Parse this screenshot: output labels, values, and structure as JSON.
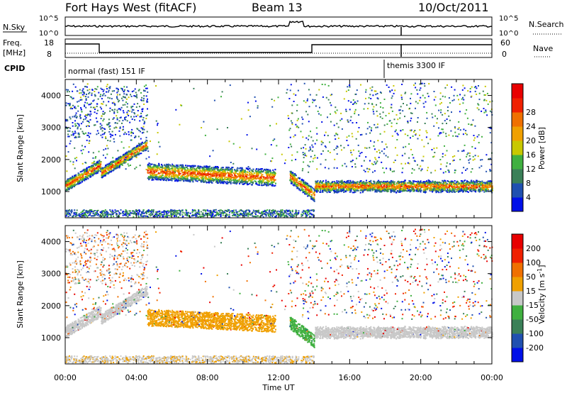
{
  "header": {
    "station": "Fort Hays West (fitACF)",
    "beam": "Beam 13",
    "date": "10/Oct/2011"
  },
  "noise_panel": {
    "left_label": "N.Sky",
    "right_label": "N.Search",
    "left_ticks": [
      "10^5",
      "10^0"
    ],
    "right_ticks": [
      "10^5",
      "10^0"
    ]
  },
  "freq_panel": {
    "left_label_1": "Freq.",
    "left_label_2": "[MHz]",
    "right_label": "Nave",
    "left_ticks": [
      "18",
      "8"
    ],
    "right_ticks": [
      "60",
      "0"
    ]
  },
  "cpid_panel": {
    "label": "CPID",
    "modes": [
      {
        "name": "normal (fast) 151 IF",
        "start_hour": 0
      },
      {
        "name": "themis 3300 IF",
        "start_hour": 18
      }
    ]
  },
  "chart_data": [
    {
      "type": "heatmap",
      "title": "",
      "ylabel": "Slant Range [km]",
      "xlabel": "",
      "xlim_hours": [
        0,
        24
      ],
      "ylim_km": [
        180,
        4500
      ],
      "y_ticks": [
        1000,
        2000,
        3000,
        4000
      ],
      "colorbar": {
        "label": "Power [dB]",
        "ticks": [
          "4",
          "8",
          "12",
          "16",
          "20",
          "24",
          "28"
        ],
        "colors": [
          "#0010e8",
          "#2050b0",
          "#3a8058",
          "#40b040",
          "#c8c800",
          "#f0a000",
          "#f07000",
          "#f02000",
          "#e80000"
        ]
      },
      "echo_bands": [
        {
          "t_start": 0.0,
          "t_end": 2.0,
          "range_start_km": 1200,
          "range_end_km": 1850
        },
        {
          "t_start": 2.0,
          "t_end": 4.6,
          "range_start_km": 1600,
          "range_end_km": 2500
        },
        {
          "t_start": 4.6,
          "t_end": 11.8,
          "range_start_km": 1650,
          "range_end_km": 1450
        },
        {
          "t_start": 12.7,
          "t_end": 14.0,
          "range_start_km": 1300,
          "range_end_km": 800
        },
        {
          "t_start": 14.0,
          "t_end": 24.0,
          "range_start_km": 1180,
          "range_end_km": 1180
        }
      ]
    },
    {
      "type": "heatmap",
      "title": "",
      "ylabel": "Slant Range [km]",
      "xlabel": "Time UT",
      "xlim_hours": [
        0,
        24
      ],
      "ylim_km": [
        180,
        4500
      ],
      "y_ticks": [
        1000,
        2000,
        3000,
        4000
      ],
      "x_tick_labels": [
        "00:00",
        "04:00",
        "08:00",
        "12:00",
        "16:00",
        "20:00",
        "00:00"
      ],
      "colorbar": {
        "label": "Velocity [m s^-1]",
        "ticks": [
          "200",
          "100",
          "50",
          "15",
          "-15",
          "-50",
          "-100",
          "-200"
        ],
        "colors": [
          "#0010e8",
          "#2050b0",
          "#3a8058",
          "#40b040",
          "#c8c8c8",
          "#f0a000",
          "#f07000",
          "#f02000",
          "#e80000"
        ]
      }
    }
  ]
}
